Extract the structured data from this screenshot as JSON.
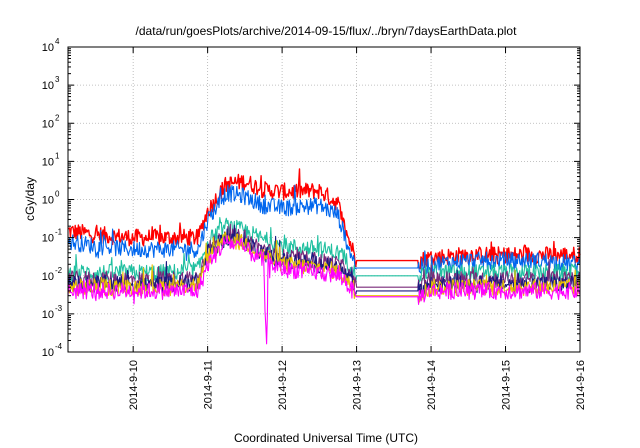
{
  "chart_data": {
    "type": "line",
    "title": "/data/run/goesPlots/archive/2014-09-15/flux/../bryn/7daysEarthData.plot",
    "xlabel": "Coordinated Universal Time (UTC)",
    "ylabel": "cGy/day",
    "x_ticks": [
      "2014-9-10",
      "2014-9-11",
      "2014-9-12",
      "2014-9-13",
      "2014-9-14",
      "2014-9-15",
      "2014-9-16"
    ],
    "x_range": [
      "2014-09-09T03:00",
      "2014-09-16T00:00"
    ],
    "y_scale": "log",
    "ylim": [
      0.0001,
      10000
    ],
    "y_ticks": [
      {
        "base": "10",
        "exp": "-4"
      },
      {
        "base": "10",
        "exp": "-3"
      },
      {
        "base": "10",
        "exp": "-2"
      },
      {
        "base": "10",
        "exp": "-1"
      },
      {
        "base": "10",
        "exp": "0"
      },
      {
        "base": "10",
        "exp": "1"
      },
      {
        "base": "10",
        "exp": "2"
      },
      {
        "base": "10",
        "exp": "3"
      },
      {
        "base": "10",
        "exp": "4"
      }
    ],
    "grid": true,
    "series": [
      {
        "color": "#ff0000",
        "x": [
          "2014-09-09T03:00",
          "2014-09-09T12:00",
          "2014-09-10T00:00",
          "2014-09-10T12:00",
          "2014-09-10T21:00",
          "2014-09-11T00:00",
          "2014-09-11T06:00",
          "2014-09-11T12:00",
          "2014-09-11T18:00",
          "2014-09-12T00:00",
          "2014-09-12T12:00",
          "2014-09-12T18:00",
          "2014-09-12T20:00",
          "2014-09-13T00:00",
          "2014-09-13T12:00",
          "2014-09-13T20:00",
          "2014-09-14T00:00",
          "2014-09-14T12:00",
          "2014-09-15T00:00",
          "2014-09-15T12:00",
          "2014-09-16T00:00"
        ],
        "y": [
          0.15,
          0.12,
          0.1,
          0.1,
          0.1,
          0.5,
          2.5,
          3,
          1.8,
          1.6,
          1.7,
          0.8,
          0.2,
          0.025,
          0.025,
          0.025,
          0.03,
          0.035,
          0.035,
          0.035,
          0.035
        ]
      },
      {
        "color": "#0066ee",
        "x": [
          "2014-09-09T03:00",
          "2014-09-09T12:00",
          "2014-09-10T00:00",
          "2014-09-10T12:00",
          "2014-09-10T21:00",
          "2014-09-11T00:00",
          "2014-09-11T06:00",
          "2014-09-11T12:00",
          "2014-09-11T18:00",
          "2014-09-12T00:00",
          "2014-09-12T12:00",
          "2014-09-12T18:00",
          "2014-09-12T20:00",
          "2014-09-13T00:00",
          "2014-09-13T12:00",
          "2014-09-13T20:00",
          "2014-09-14T00:00",
          "2014-09-14T12:00",
          "2014-09-15T00:00",
          "2014-09-15T12:00",
          "2014-09-16T00:00"
        ],
        "y": [
          0.08,
          0.06,
          0.05,
          0.05,
          0.05,
          0.3,
          1.5,
          1.2,
          0.7,
          0.6,
          0.7,
          0.4,
          0.12,
          0.016,
          0.016,
          0.016,
          0.02,
          0.025,
          0.025,
          0.025,
          0.02
        ]
      },
      {
        "color": "#20c0a0",
        "x": [
          "2014-09-09T03:00",
          "2014-09-09T12:00",
          "2014-09-10T00:00",
          "2014-09-10T12:00",
          "2014-09-10T21:00",
          "2014-09-11T00:00",
          "2014-09-11T06:00",
          "2014-09-11T12:00",
          "2014-09-11T18:00",
          "2014-09-12T00:00",
          "2014-09-12T12:00",
          "2014-09-12T18:00",
          "2014-09-12T20:00",
          "2014-09-13T00:00",
          "2014-09-13T12:00",
          "2014-09-13T20:00",
          "2014-09-14T00:00",
          "2014-09-14T12:00",
          "2014-09-15T00:00",
          "2014-09-15T12:00",
          "2014-09-16T00:00"
        ],
        "y": [
          0.012,
          0.012,
          0.012,
          0.012,
          0.015,
          0.08,
          0.2,
          0.15,
          0.09,
          0.06,
          0.05,
          0.04,
          0.03,
          0.01,
          0.01,
          0.01,
          0.012,
          0.012,
          0.012,
          0.012,
          0.012
        ]
      },
      {
        "color": "#7a2a7a",
        "x": [
          "2014-09-09T03:00",
          "2014-09-09T12:00",
          "2014-09-10T00:00",
          "2014-09-10T12:00",
          "2014-09-10T21:00",
          "2014-09-11T00:00",
          "2014-09-11T06:00",
          "2014-09-11T12:00",
          "2014-09-11T18:00",
          "2014-09-12T00:00",
          "2014-09-12T12:00",
          "2014-09-12T18:00",
          "2014-09-12T20:00",
          "2014-09-13T00:00",
          "2014-09-13T12:00",
          "2014-09-13T20:00",
          "2014-09-14T00:00",
          "2014-09-14T12:00",
          "2014-09-15T00:00",
          "2014-09-15T12:00",
          "2014-09-16T00:00"
        ],
        "y": [
          0.008,
          0.008,
          0.008,
          0.008,
          0.009,
          0.05,
          0.12,
          0.09,
          0.05,
          0.03,
          0.025,
          0.02,
          0.015,
          0.005,
          0.005,
          0.005,
          0.008,
          0.008,
          0.008,
          0.008,
          0.008
        ]
      },
      {
        "color": "#1a1a80",
        "x": [
          "2014-09-09T03:00",
          "2014-09-09T12:00",
          "2014-09-10T00:00",
          "2014-09-10T12:00",
          "2014-09-10T21:00",
          "2014-09-11T00:00",
          "2014-09-11T06:00",
          "2014-09-11T12:00",
          "2014-09-11T18:00",
          "2014-09-12T00:00",
          "2014-09-12T12:00",
          "2014-09-12T18:00",
          "2014-09-12T20:00",
          "2014-09-13T00:00",
          "2014-09-13T12:00",
          "2014-09-13T20:00",
          "2014-09-14T00:00",
          "2014-09-14T12:00",
          "2014-09-15T00:00",
          "2014-09-15T12:00",
          "2014-09-16T00:00"
        ],
        "y": [
          0.006,
          0.006,
          0.006,
          0.006,
          0.007,
          0.04,
          0.1,
          0.08,
          0.04,
          0.025,
          0.02,
          0.016,
          0.012,
          0.004,
          0.004,
          0.004,
          0.006,
          0.006,
          0.006,
          0.006,
          0.006
        ]
      },
      {
        "color": "#e8c000",
        "x": [
          "2014-09-09T03:00",
          "2014-09-09T12:00",
          "2014-09-10T00:00",
          "2014-09-10T12:00",
          "2014-09-10T21:00",
          "2014-09-11T00:00",
          "2014-09-11T06:00",
          "2014-09-11T12:00",
          "2014-09-11T18:00",
          "2014-09-12T00:00",
          "2014-09-12T12:00",
          "2014-09-12T18:00",
          "2014-09-12T20:00",
          "2014-09-13T00:00",
          "2014-09-13T12:00",
          "2014-09-13T20:00",
          "2014-09-14T00:00",
          "2014-09-14T12:00",
          "2014-09-15T00:00",
          "2014-09-15T12:00",
          "2014-09-16T00:00"
        ],
        "y": [
          0.005,
          0.005,
          0.005,
          0.005,
          0.006,
          0.03,
          0.09,
          0.07,
          0.035,
          0.02,
          0.016,
          0.013,
          0.01,
          0.003,
          0.003,
          0.003,
          0.005,
          0.005,
          0.005,
          0.005,
          0.005
        ]
      },
      {
        "color": "#ff00ff",
        "x": [
          "2014-09-09T03:00",
          "2014-09-09T12:00",
          "2014-09-10T00:00",
          "2014-09-10T12:00",
          "2014-09-10T21:00",
          "2014-09-11T00:00",
          "2014-09-11T06:00",
          "2014-09-11T12:00",
          "2014-09-11T18:00",
          "2014-09-11T19:00",
          "2014-09-11T19:30",
          "2014-09-11T20:00",
          "2014-09-12T00:00",
          "2014-09-12T12:00",
          "2014-09-12T18:00",
          "2014-09-12T20:00",
          "2014-09-13T00:00",
          "2014-09-13T12:00",
          "2014-09-13T20:00",
          "2014-09-14T00:00",
          "2014-09-14T12:00",
          "2014-09-15T00:00",
          "2014-09-15T12:00",
          "2014-09-16T00:00"
        ],
        "y": [
          0.004,
          0.004,
          0.004,
          0.004,
          0.004,
          0.02,
          0.08,
          0.05,
          0.025,
          0.0001,
          0.025,
          0.02,
          0.015,
          0.012,
          0.01,
          0.008,
          0.0028,
          0.0028,
          0.0028,
          0.004,
          0.004,
          0.004,
          0.004,
          0.004
        ]
      }
    ]
  }
}
